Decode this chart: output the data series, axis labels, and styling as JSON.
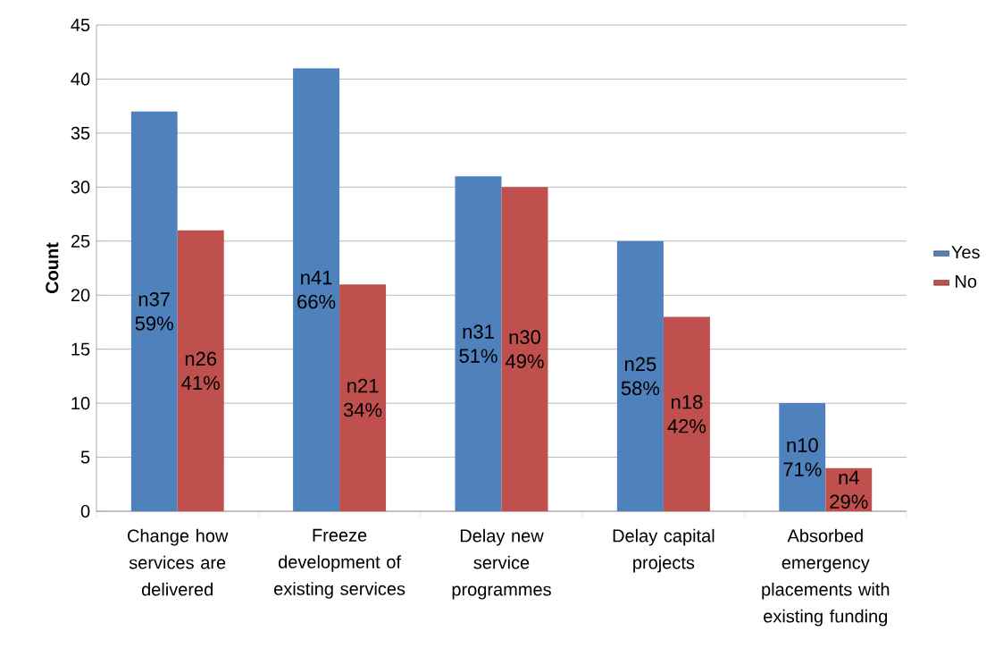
{
  "chart_data": {
    "type": "bar",
    "ylabel": "Count",
    "categories": [
      "Change how services are delivered",
      "Freeze development of existing services",
      "Delay new service programmes",
      "Delay capital projects",
      "Absorbed emergency placements with existing funding"
    ],
    "series": [
      {
        "name": "Yes",
        "color": "#4f81bd",
        "values": [
          37,
          41,
          31,
          25,
          10
        ],
        "value_labels": [
          "n37 59%",
          "n41 66%",
          "n31 51%",
          "n25 58%",
          "n10 71%"
        ]
      },
      {
        "name": "No",
        "color": "#c0504d",
        "values": [
          26,
          21,
          30,
          18,
          4
        ],
        "value_labels": [
          "n26 41%",
          "n21 34%",
          "n30 49%",
          "n18 42%",
          "n4 29%"
        ]
      }
    ],
    "ylim": [
      0,
      45
    ],
    "yticks": [
      0,
      5,
      10,
      15,
      20,
      25,
      30,
      35,
      40,
      45
    ],
    "grid": "y",
    "legend": "right"
  }
}
